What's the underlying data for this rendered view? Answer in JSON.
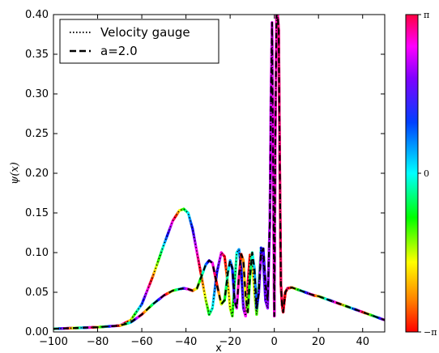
{
  "chart_data": {
    "type": "line",
    "xlabel": "x",
    "ylabel": "ψ(x)",
    "xlim": [
      -100,
      50
    ],
    "ylim": [
      0.0,
      0.4
    ],
    "xticks": [
      "−100",
      "−80",
      "−60",
      "−40",
      "−20",
      "0",
      "20",
      "40"
    ],
    "xtick_values": [
      -100,
      -80,
      -60,
      -40,
      -20,
      0,
      20,
      40
    ],
    "yticks": [
      "0.00",
      "0.05",
      "0.10",
      "0.15",
      "0.20",
      "0.25",
      "0.30",
      "0.35",
      "0.40"
    ],
    "ytick_values": [
      0.0,
      0.05,
      0.1,
      0.15,
      0.2,
      0.25,
      0.3,
      0.35,
      0.4
    ],
    "legend_position": "top-left",
    "colorbar": {
      "top_label": "π",
      "middle_label": "0",
      "bottom_label": "−π",
      "description": "phase"
    },
    "series": [
      {
        "name": "Velocity gauge",
        "style": "dotted",
        "x": [
          -100,
          -90,
          -80,
          -70,
          -65,
          -60,
          -55,
          -50,
          -46,
          -43,
          -41,
          -39,
          -37,
          -35,
          -33,
          -31,
          -29.5,
          -28,
          -26,
          -24,
          -22.5,
          -21,
          -20,
          -19,
          -18,
          -17,
          -16,
          -15,
          -14,
          -13,
          -12,
          -11,
          -10,
          -9,
          -8,
          -7,
          -6,
          -5,
          -4,
          -3,
          -2,
          -1.5,
          -1,
          -0.5,
          0,
          0.5,
          1,
          1.5,
          2,
          2.5,
          3,
          3.5,
          4,
          5,
          6,
          8,
          10,
          12,
          14,
          16,
          18,
          20,
          25,
          30,
          35,
          40,
          45,
          50
        ],
        "y": [
          0.004,
          0.005,
          0.006,
          0.008,
          0.015,
          0.035,
          0.07,
          0.11,
          0.14,
          0.153,
          0.155,
          0.15,
          0.13,
          0.1,
          0.07,
          0.04,
          0.022,
          0.03,
          0.075,
          0.1,
          0.095,
          0.06,
          0.03,
          0.02,
          0.06,
          0.1,
          0.104,
          0.08,
          0.03,
          0.02,
          0.06,
          0.097,
          0.09,
          0.05,
          0.022,
          0.06,
          0.106,
          0.09,
          0.04,
          0.03,
          0.14,
          0.3,
          0.39,
          0.2,
          0.02,
          0.25,
          0.4,
          0.4,
          0.38,
          0.2,
          0.06,
          0.035,
          0.025,
          0.05,
          0.055,
          0.056,
          0.054,
          0.052,
          0.05,
          0.048,
          0.046,
          0.045,
          0.04,
          0.035,
          0.03,
          0.025,
          0.02,
          0.015
        ]
      },
      {
        "name": "a=2.0",
        "style": "dashed",
        "x": [
          -100,
          -90,
          -80,
          -70,
          -65,
          -60,
          -55,
          -50,
          -46,
          -43,
          -41,
          -39,
          -37,
          -35,
          -33,
          -31,
          -29.5,
          -28,
          -26,
          -24,
          -22.5,
          -21,
          -20,
          -19,
          -18,
          -17,
          -16,
          -15,
          -14,
          -13,
          -12,
          -11,
          -10,
          -9,
          -8,
          -7,
          -6,
          -5,
          -4,
          -3,
          -2,
          -1.5,
          -1,
          -0.5,
          0,
          0.5,
          1,
          1.5,
          2,
          2.5,
          3,
          3.5,
          4,
          5,
          6,
          8,
          10,
          12,
          14,
          16,
          18,
          20,
          25,
          30,
          35,
          40,
          45,
          50
        ],
        "y": [
          0.004,
          0.005,
          0.006,
          0.008,
          0.012,
          0.022,
          0.035,
          0.046,
          0.052,
          0.054,
          0.055,
          0.054,
          0.052,
          0.055,
          0.07,
          0.085,
          0.09,
          0.087,
          0.06,
          0.035,
          0.04,
          0.075,
          0.09,
          0.08,
          0.04,
          0.03,
          0.07,
          0.098,
          0.09,
          0.045,
          0.025,
          0.07,
          0.1,
          0.08,
          0.03,
          0.05,
          0.1,
          0.105,
          0.06,
          0.04,
          0.14,
          0.3,
          0.39,
          0.2,
          0.02,
          0.25,
          0.4,
          0.4,
          0.38,
          0.2,
          0.06,
          0.035,
          0.025,
          0.05,
          0.055,
          0.056,
          0.054,
          0.052,
          0.05,
          0.048,
          0.046,
          0.045,
          0.04,
          0.035,
          0.03,
          0.025,
          0.02,
          0.015
        ]
      }
    ]
  }
}
